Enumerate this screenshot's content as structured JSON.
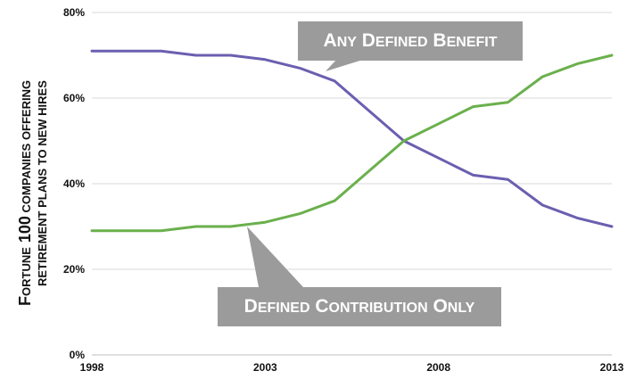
{
  "chart_data": {
    "type": "line",
    "ylabel_line1": "Fortune 100 companies offering",
    "ylabel_line2": "retirement plans to new hires",
    "xlim": [
      1998,
      2013
    ],
    "ylim": [
      0,
      80
    ],
    "x_ticks": [
      "1998",
      "2003",
      "2008",
      "2013"
    ],
    "y_ticks": [
      "0%",
      "20%",
      "40%",
      "60%",
      "80%"
    ],
    "grid": "horizontal",
    "x": [
      1998,
      1999,
      2000,
      2001,
      2002,
      2003,
      2004,
      2005,
      2006,
      2007,
      2008,
      2009,
      2010,
      2011,
      2012,
      2013
    ],
    "series": [
      {
        "name": "Any Defined Benefit",
        "color": "#6a5fb0",
        "values": [
          71,
          71,
          71,
          70,
          70,
          69,
          67,
          64,
          57,
          50,
          46,
          42,
          41,
          35,
          32,
          30
        ]
      },
      {
        "name": "Defined Contribution Only",
        "color": "#6ab04c",
        "values": [
          29,
          29,
          29,
          30,
          30,
          31,
          33,
          36,
          43,
          50,
          54,
          58,
          59,
          65,
          68,
          70
        ]
      }
    ],
    "callout_color": "#9b9b9b"
  }
}
